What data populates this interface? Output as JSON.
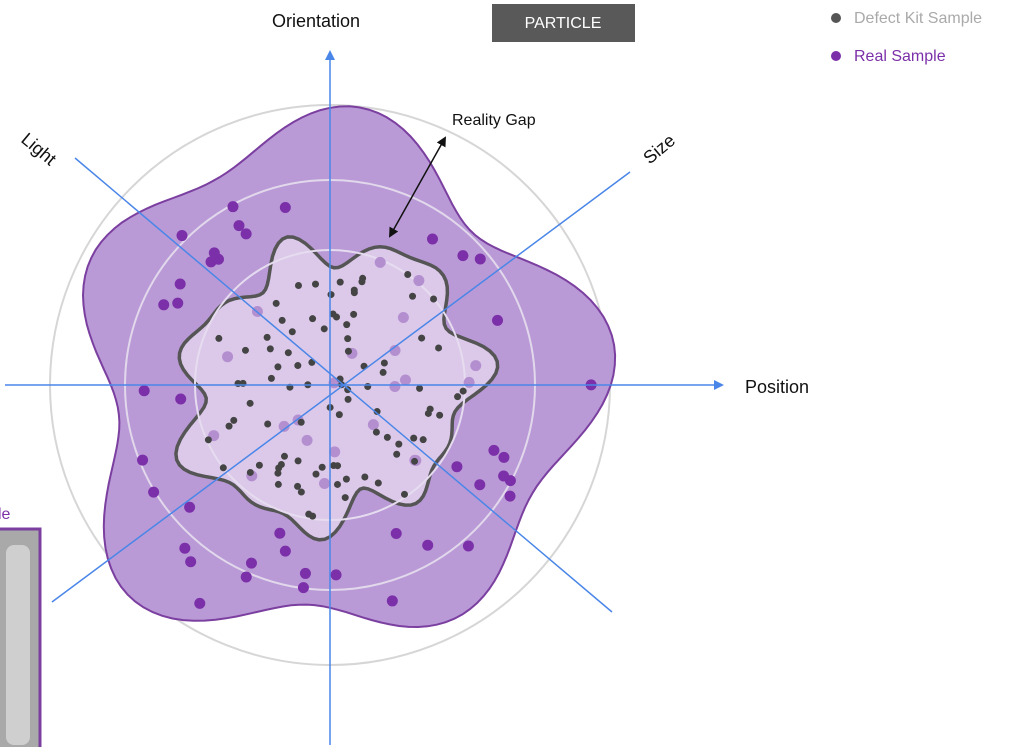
{
  "axes": {
    "orientation": "Orientation",
    "light": "Light",
    "size": "Size",
    "position": "Position"
  },
  "badge": "PARTICLE",
  "annotation": "Reality Gap",
  "legend": {
    "defect": "Defect Kit Sample",
    "real": "Real Sample"
  },
  "inset_label": "le"
}
